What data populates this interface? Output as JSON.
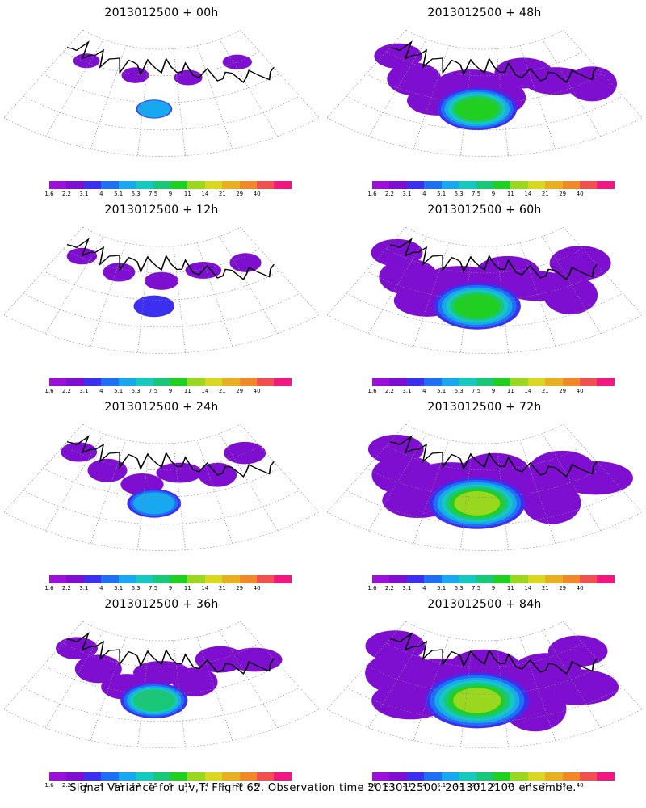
{
  "panels": [
    {
      "title": "2013012500 + 00h",
      "lead": "00h",
      "extent": 0.1,
      "peak_level": 4
    },
    {
      "title": "2013012500 + 48h",
      "lead": "48h",
      "extent": 0.65,
      "peak_level": 7
    },
    {
      "title": "2013012500 + 12h",
      "lead": "12h",
      "extent": 0.2,
      "peak_level": 2
    },
    {
      "title": "2013012500 + 60h",
      "lead": "60h",
      "extent": 0.75,
      "peak_level": 7
    },
    {
      "title": "2013012500 + 24h",
      "lead": "24h",
      "extent": 0.35,
      "peak_level": 4
    },
    {
      "title": "2013012500 + 72h",
      "lead": "72h",
      "extent": 0.85,
      "peak_level": 8
    },
    {
      "title": "2013012500 + 36h",
      "lead": "36h",
      "extent": 0.5,
      "peak_level": 6
    },
    {
      "title": "2013012500 + 84h",
      "lead": "84h",
      "extent": 0.95,
      "peak_level": 8
    }
  ],
  "colorbar": {
    "labels": [
      "1.6",
      "2.2",
      "3.1",
      "4",
      "5.1",
      "6.3",
      "7.5",
      "9",
      "11",
      "14",
      "21",
      "29",
      "40"
    ],
    "colors": [
      "#9b11d9",
      "#7f0fd0",
      "#3c2ff0",
      "#1f6ff5",
      "#18a8f0",
      "#15c8c0",
      "#18c878",
      "#20d020",
      "#9ad820",
      "#d8d820",
      "#e8b020",
      "#f08828",
      "#f05050",
      "#f01880"
    ]
  },
  "caption": "Signal Variance for u,v,T. Flight 62. Observation time 2013012500. 2013012100 ensemble."
}
